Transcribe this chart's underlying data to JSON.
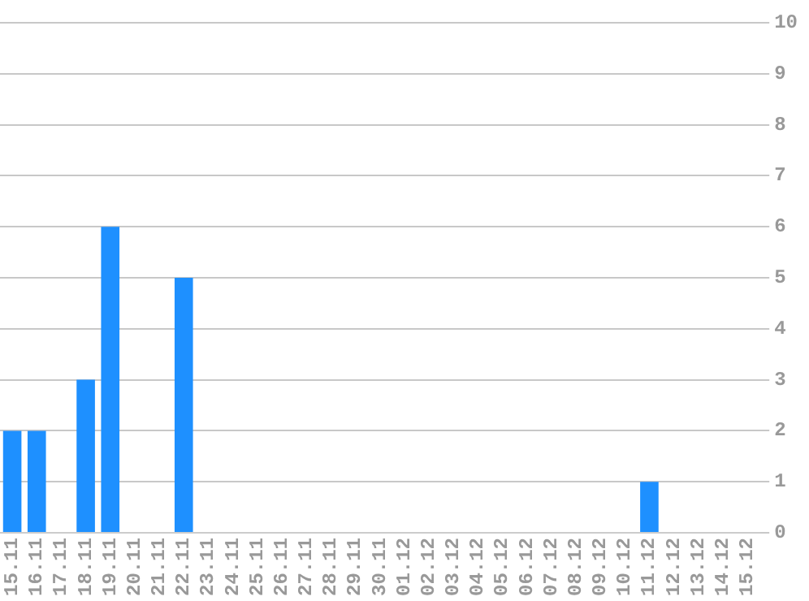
{
  "chart_data": {
    "type": "bar",
    "categories": [
      "15.11",
      "16.11",
      "17.11",
      "18.11",
      "19.11",
      "20.11",
      "21.11",
      "22.11",
      "23.11",
      "24.11",
      "25.11",
      "26.11",
      "27.11",
      "28.11",
      "29.11",
      "30.11",
      "01.12",
      "02.12",
      "03.12",
      "04.12",
      "05.12",
      "06.12",
      "07.12",
      "08.12",
      "09.12",
      "10.12",
      "11.12",
      "12.12",
      "13.12",
      "14.12",
      "15.12"
    ],
    "values": [
      2,
      2,
      0,
      3,
      6,
      0,
      0,
      5,
      0,
      0,
      0,
      0,
      0,
      0,
      0,
      0,
      0,
      0,
      0,
      0,
      0,
      0,
      0,
      0,
      0,
      0,
      1,
      0,
      0,
      0,
      0
    ],
    "color": "#1e90ff",
    "ylim": [
      0,
      10
    ],
    "yticks": [
      0,
      1,
      2,
      3,
      4,
      5,
      6,
      7,
      8,
      9,
      10
    ],
    "grid": "y"
  }
}
